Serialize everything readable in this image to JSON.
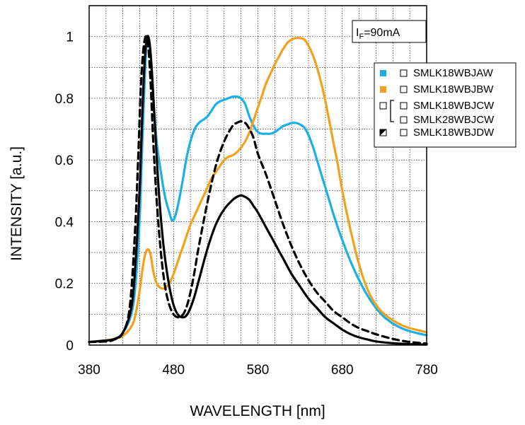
{
  "chart_data": {
    "type": "line",
    "xlabel": "WAVELENGTH [nm]",
    "ylabel": "INTENSITY [a.u.]",
    "xlim": [
      380,
      780
    ],
    "ylim": [
      0,
      1.1
    ],
    "x_ticks": [
      "380",
      "480",
      "580",
      "680",
      "780"
    ],
    "y_ticks": [
      "0",
      "0.2",
      "0.4",
      "0.6",
      "0.8",
      "1"
    ],
    "grid": "dotted",
    "condition": {
      "main": "I",
      "sub": "F",
      "rest": "=90mA"
    },
    "legend_position": "top-right",
    "legend": [
      {
        "swatch": "blue",
        "label": "SMLK18WBJAW"
      },
      {
        "swatch": "orange",
        "label": "SMLK18WBJBW"
      },
      {
        "swatch": "white",
        "label": "SMLK18WBJCW"
      },
      {
        "swatch": "white",
        "label": "SMLK28WBJCW"
      },
      {
        "swatch": "half-black",
        "label": "SMLK18WBJDW"
      }
    ],
    "series": [
      {
        "color": "#1ab0e6",
        "style": "solid",
        "x": [
          380,
          400,
          410,
          420,
          430,
          435,
          440,
          443,
          446,
          448,
          450,
          453,
          456,
          460,
          465,
          470,
          475,
          478,
          481,
          485,
          490,
          495,
          500,
          505,
          510,
          515,
          520,
          525,
          530,
          535,
          540,
          545,
          550,
          555,
          560,
          565,
          570,
          575,
          580,
          585,
          590,
          595,
          600,
          605,
          610,
          615,
          620,
          625,
          630,
          635,
          640,
          645,
          650,
          655,
          660,
          665,
          670,
          680,
          690,
          700,
          710,
          720,
          730,
          740,
          750,
          760,
          770,
          780
        ],
        "y": [
          0.01,
          0.015,
          0.02,
          0.04,
          0.1,
          0.2,
          0.42,
          0.65,
          0.87,
          0.97,
          0.99,
          0.93,
          0.8,
          0.66,
          0.56,
          0.48,
          0.43,
          0.405,
          0.41,
          0.45,
          0.52,
          0.6,
          0.66,
          0.7,
          0.72,
          0.73,
          0.74,
          0.76,
          0.78,
          0.79,
          0.795,
          0.8,
          0.805,
          0.805,
          0.8,
          0.78,
          0.74,
          0.71,
          0.69,
          0.685,
          0.685,
          0.685,
          0.69,
          0.7,
          0.71,
          0.715,
          0.72,
          0.72,
          0.715,
          0.705,
          0.68,
          0.645,
          0.6,
          0.555,
          0.51,
          0.465,
          0.42,
          0.34,
          0.27,
          0.21,
          0.16,
          0.12,
          0.09,
          0.07,
          0.055,
          0.045,
          0.038,
          0.032
        ]
      },
      {
        "color": "#f5a01a",
        "style": "solid",
        "x": [
          380,
          400,
          410,
          420,
          430,
          435,
          440,
          444,
          447,
          450,
          453,
          456,
          460,
          465,
          470,
          475,
          480,
          485,
          490,
          495,
          500,
          505,
          510,
          515,
          520,
          525,
          530,
          535,
          540,
          545,
          550,
          555,
          560,
          565,
          570,
          575,
          580,
          585,
          590,
          595,
          600,
          605,
          610,
          615,
          620,
          625,
          630,
          635,
          640,
          645,
          650,
          655,
          660,
          665,
          670,
          675,
          680,
          690,
          700,
          710,
          720,
          730,
          740,
          750,
          760,
          770,
          780
        ],
        "y": [
          0.01,
          0.015,
          0.02,
          0.03,
          0.06,
          0.1,
          0.18,
          0.26,
          0.3,
          0.31,
          0.29,
          0.24,
          0.2,
          0.185,
          0.185,
          0.2,
          0.23,
          0.27,
          0.31,
          0.35,
          0.39,
          0.42,
          0.45,
          0.48,
          0.51,
          0.54,
          0.56,
          0.58,
          0.6,
          0.61,
          0.615,
          0.625,
          0.64,
          0.66,
          0.69,
          0.73,
          0.77,
          0.81,
          0.85,
          0.88,
          0.91,
          0.935,
          0.96,
          0.98,
          0.99,
          0.995,
          0.995,
          0.99,
          0.97,
          0.94,
          0.9,
          0.85,
          0.79,
          0.72,
          0.65,
          0.58,
          0.5,
          0.37,
          0.26,
          0.18,
          0.13,
          0.1,
          0.08,
          0.065,
          0.055,
          0.048,
          0.042
        ]
      },
      {
        "color": "#000000",
        "style": "dashed",
        "x": [
          380,
          400,
          410,
          420,
          428,
          434,
          438,
          441,
          444,
          447,
          450,
          453,
          456,
          460,
          465,
          470,
          475,
          480,
          485,
          490,
          495,
          500,
          505,
          510,
          520,
          530,
          540,
          550,
          555,
          560,
          565,
          570,
          575,
          580,
          590,
          600,
          610,
          620,
          630,
          640,
          650,
          660,
          670,
          680,
          690,
          700,
          710,
          720,
          740,
          760,
          780
        ],
        "y": [
          0.01,
          0.012,
          0.018,
          0.04,
          0.12,
          0.35,
          0.6,
          0.82,
          0.95,
          1.0,
          0.97,
          0.84,
          0.66,
          0.47,
          0.3,
          0.19,
          0.13,
          0.1,
          0.09,
          0.095,
          0.12,
          0.17,
          0.24,
          0.32,
          0.46,
          0.58,
          0.66,
          0.71,
          0.72,
          0.725,
          0.72,
          0.7,
          0.67,
          0.62,
          0.55,
          0.47,
          0.39,
          0.32,
          0.26,
          0.21,
          0.17,
          0.14,
          0.11,
          0.09,
          0.07,
          0.055,
          0.045,
          0.035,
          0.02,
          0.01,
          0.005
        ]
      },
      {
        "color": "#000000",
        "style": "solid",
        "x": [
          380,
          400,
          410,
          420,
          430,
          435,
          440,
          443,
          446,
          449,
          452,
          455,
          458,
          462,
          466,
          470,
          475,
          480,
          485,
          490,
          495,
          500,
          505,
          510,
          520,
          530,
          540,
          550,
          555,
          560,
          565,
          570,
          575,
          580,
          590,
          600,
          610,
          620,
          630,
          640,
          650,
          660,
          670,
          680,
          690,
          700,
          710,
          720,
          740,
          760,
          780
        ],
        "y": [
          0.01,
          0.015,
          0.02,
          0.04,
          0.12,
          0.27,
          0.52,
          0.75,
          0.93,
          1.0,
          0.97,
          0.86,
          0.71,
          0.52,
          0.38,
          0.28,
          0.19,
          0.13,
          0.1,
          0.09,
          0.095,
          0.12,
          0.16,
          0.21,
          0.31,
          0.39,
          0.44,
          0.47,
          0.48,
          0.485,
          0.48,
          0.47,
          0.45,
          0.43,
          0.38,
          0.33,
          0.28,
          0.23,
          0.19,
          0.15,
          0.12,
          0.09,
          0.07,
          0.05,
          0.035,
          0.025,
          0.018,
          0.012,
          0.006,
          0.003,
          0.002
        ]
      }
    ]
  }
}
